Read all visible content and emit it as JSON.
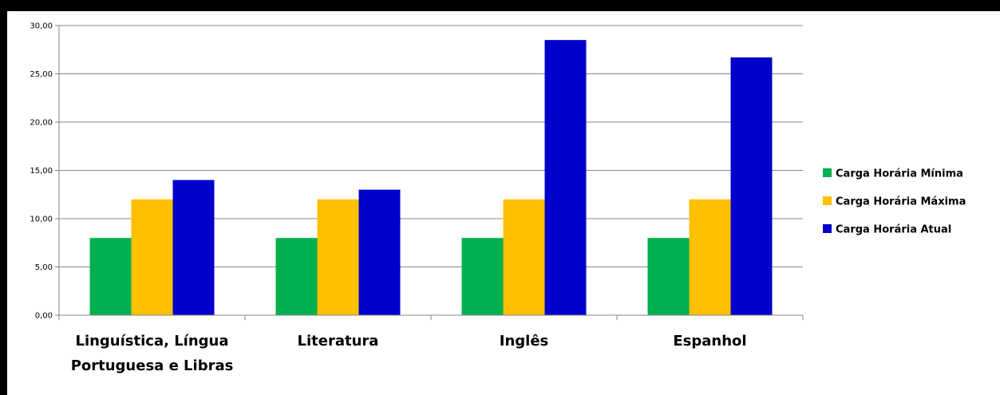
{
  "chart_data": {
    "type": "bar",
    "categories": [
      [
        "Linguística, Língua",
        "Portuguesa e Libras"
      ],
      [
        "Literatura"
      ],
      [
        "Inglês"
      ],
      [
        "Espanhol"
      ]
    ],
    "series": [
      {
        "name": "Carga Horária Mínima",
        "color": "#00b050",
        "values": [
          8,
          8,
          8,
          8
        ]
      },
      {
        "name": "Carga Horária Máxima",
        "color": "#ffc000",
        "values": [
          12,
          12,
          12,
          12
        ]
      },
      {
        "name": "Carga Horária Atual",
        "color": "#0000cc",
        "values": [
          14,
          13,
          28.5,
          26.7
        ]
      }
    ],
    "ylim": [
      0,
      30
    ],
    "yticks": [
      "0,00",
      "5,00",
      "10,00",
      "15,00",
      "20,00",
      "25,00",
      "30,00"
    ],
    "ytick_values": [
      0,
      5,
      10,
      15,
      20,
      25,
      30
    ],
    "grid": true,
    "legend": "right",
    "title": "",
    "xlabel": "",
    "ylabel": ""
  }
}
